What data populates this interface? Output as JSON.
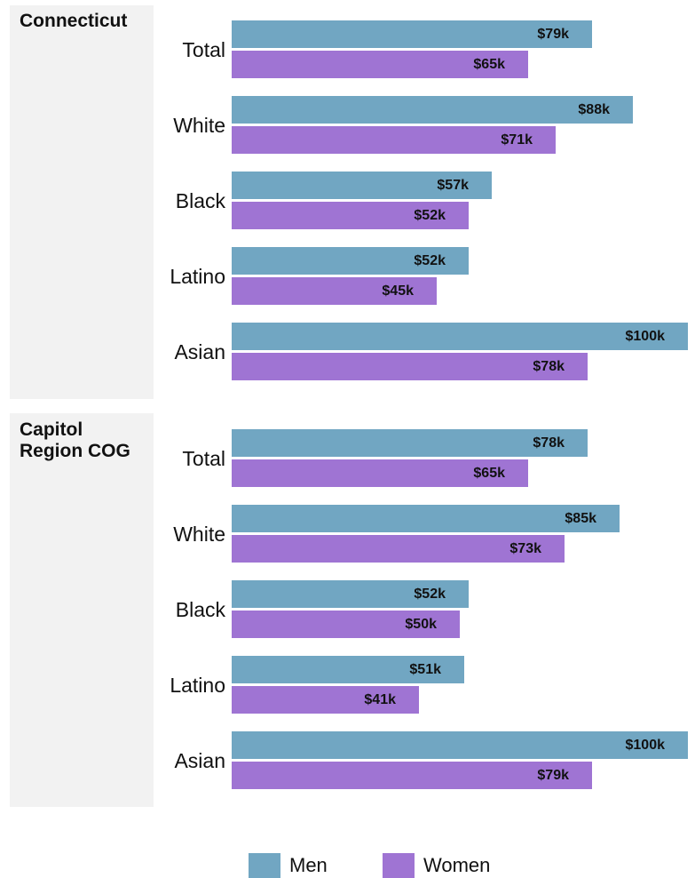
{
  "chart_data": {
    "type": "bar",
    "orientation": "horizontal",
    "grid": false,
    "legend_position": "bottom",
    "colors": {
      "Men": "#71a6c2",
      "Women": "#9f74d3"
    },
    "xlim": [
      0,
      100
    ],
    "panels": [
      {
        "title": "Connecticut",
        "categories": [
          "Total",
          "White",
          "Black",
          "Latino",
          "Asian"
        ],
        "series": [
          {
            "name": "Men",
            "values": [
              79,
              88,
              57,
              52,
              100
            ],
            "labels": [
              "$79k",
              "$88k",
              "$57k",
              "$52k",
              "$100k"
            ]
          },
          {
            "name": "Women",
            "values": [
              65,
              71,
              52,
              45,
              78
            ],
            "labels": [
              "$65k",
              "$71k",
              "$52k",
              "$45k",
              "$78k"
            ]
          }
        ]
      },
      {
        "title": "Capitol\nRegion COG",
        "categories": [
          "Total",
          "White",
          "Black",
          "Latino",
          "Asian"
        ],
        "series": [
          {
            "name": "Men",
            "values": [
              78,
              85,
              52,
              51,
              100
            ],
            "labels": [
              "$78k",
              "$85k",
              "$52k",
              "$51k",
              "$100k"
            ]
          },
          {
            "name": "Women",
            "values": [
              65,
              73,
              50,
              41,
              79
            ],
            "labels": [
              "$65k",
              "$73k",
              "$50k",
              "$41k",
              "$79k"
            ]
          }
        ]
      }
    ],
    "legend": [
      "Men",
      "Women"
    ]
  }
}
